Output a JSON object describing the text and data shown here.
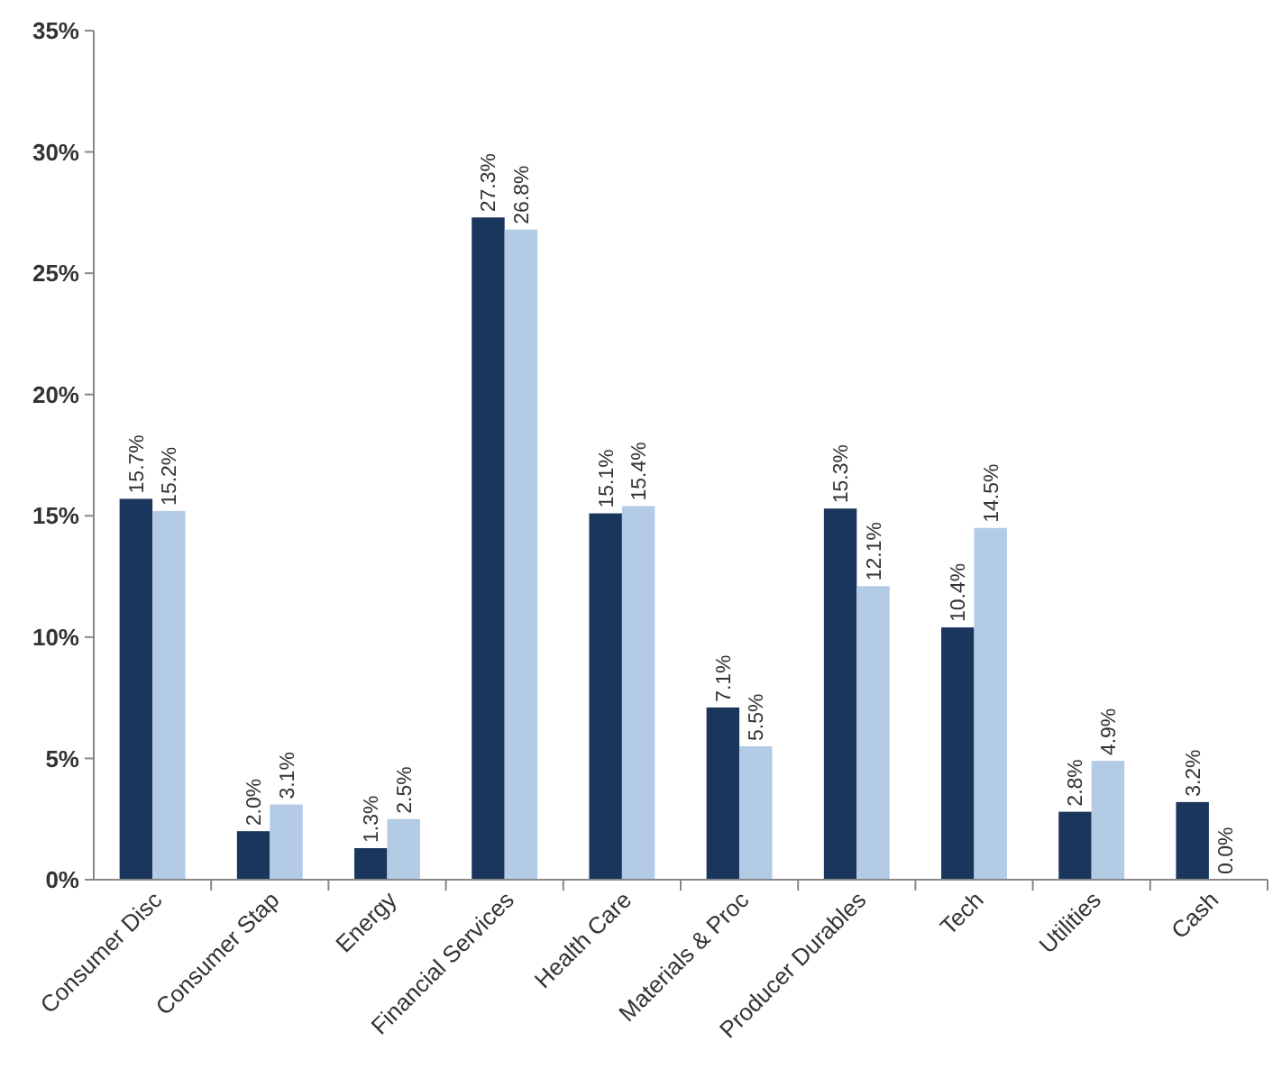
{
  "chart_data": {
    "type": "bar",
    "categories": [
      "Consumer Disc",
      "Consumer Stap",
      "Energy",
      "Financial Services",
      "Health Care",
      "Materials & Proc",
      "Producer Durables",
      "Tech",
      "Utilities",
      "Cash"
    ],
    "series": [
      {
        "color": "#1b365d",
        "values": [
          15.7,
          2.0,
          1.3,
          27.3,
          15.1,
          7.1,
          15.3,
          10.4,
          2.8,
          3.2
        ],
        "value_labels": [
          "15.7%",
          "2.0%",
          "1.3%",
          "27.3%",
          "15.1%",
          "7.1%",
          "15.3%",
          "10.4%",
          "2.8%",
          "3.2%"
        ]
      },
      {
        "color": "#b4cbe5",
        "values": [
          15.2,
          3.1,
          2.5,
          26.8,
          15.4,
          5.5,
          12.1,
          14.5,
          4.9,
          0.0
        ],
        "value_labels": [
          "15.2%",
          "3.1%",
          "2.5%",
          "26.8%",
          "15.4%",
          "5.5%",
          "12.1%",
          "14.5%",
          "4.9%",
          "0.0%"
        ]
      }
    ],
    "ylim": [
      0,
      35
    ],
    "yticks": [
      {
        "value": 0,
        "label": "0%"
      },
      {
        "value": 5,
        "label": "5%"
      },
      {
        "value": 10,
        "label": "10%"
      },
      {
        "value": 15,
        "label": "15%"
      },
      {
        "value": 20,
        "label": "20%"
      },
      {
        "value": 25,
        "label": "25%"
      },
      {
        "value": 30,
        "label": "30%"
      },
      {
        "value": 35,
        "label": "35%"
      }
    ]
  }
}
